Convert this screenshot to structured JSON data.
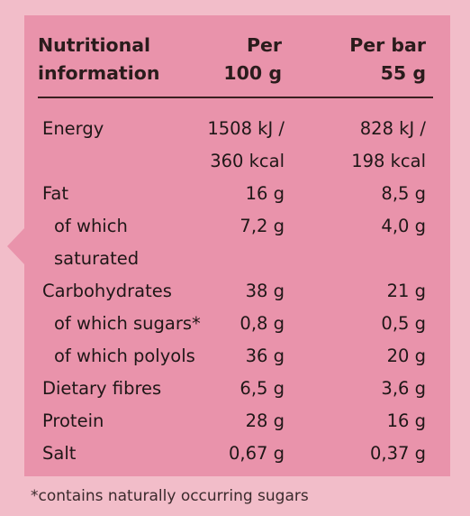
{
  "header": {
    "col_name": [
      "Nutritional",
      "information"
    ],
    "col_per100": [
      "Per",
      "100 g"
    ],
    "col_perbar": [
      "Per bar",
      "55 g"
    ]
  },
  "rows": [
    {
      "name": [
        "Energy",
        ""
      ],
      "per100": [
        "1508 kJ /",
        "360 kcal"
      ],
      "perbar": [
        "828 kJ /",
        "198 kcal"
      ],
      "sub": false
    },
    {
      "name": [
        "Fat"
      ],
      "per100": [
        "16 g"
      ],
      "perbar": [
        "8,5 g"
      ],
      "sub": false
    },
    {
      "name": [
        "of which",
        "saturated"
      ],
      "per100": [
        "7,2 g",
        ""
      ],
      "perbar": [
        "4,0 g",
        ""
      ],
      "sub": true
    },
    {
      "name": [
        "Carbohydrates"
      ],
      "per100": [
        "38 g"
      ],
      "perbar": [
        "21 g"
      ],
      "sub": false
    },
    {
      "name": [
        "of which sugars*"
      ],
      "per100": [
        "0,8 g"
      ],
      "perbar": [
        "0,5 g"
      ],
      "sub": true
    },
    {
      "name": [
        "of which polyols"
      ],
      "per100": [
        "36 g"
      ],
      "perbar": [
        "20 g"
      ],
      "sub": true
    },
    {
      "name": [
        "Dietary fibres"
      ],
      "per100": [
        "6,5 g"
      ],
      "perbar": [
        "3,6 g"
      ],
      "sub": false
    },
    {
      "name": [
        "Protein"
      ],
      "per100": [
        "28 g"
      ],
      "perbar": [
        "16 g"
      ],
      "sub": false
    },
    {
      "name": [
        "Salt"
      ],
      "per100": [
        "0,67 g"
      ],
      "perbar": [
        "0,37 g"
      ],
      "sub": false
    }
  ],
  "footnote": "*contains naturally occurring sugars",
  "colors": {
    "page_bg": "#f2bdc9",
    "panel_bg": "#e993ab",
    "text": "#1f1717"
  }
}
